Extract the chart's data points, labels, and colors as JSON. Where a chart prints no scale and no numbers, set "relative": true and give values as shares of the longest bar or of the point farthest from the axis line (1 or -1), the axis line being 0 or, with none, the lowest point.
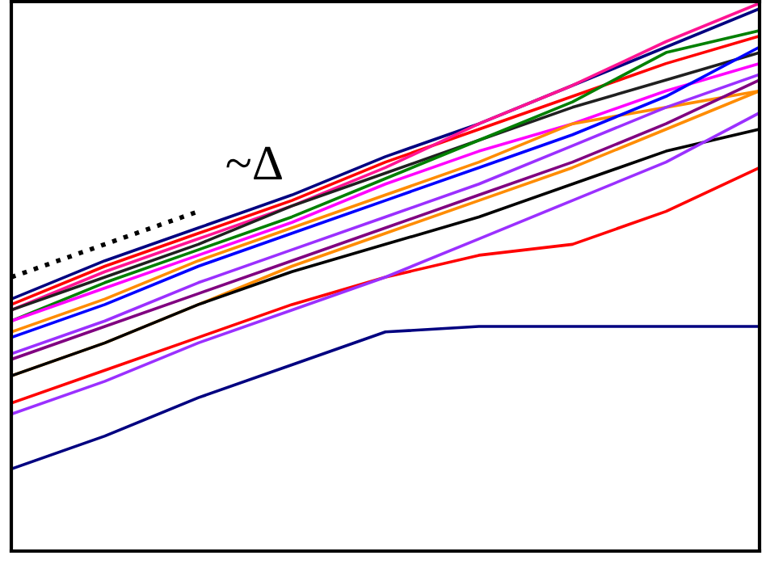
{
  "chart_data": {
    "type": "line",
    "relative": true,
    "grid": false,
    "legend": false,
    "marker": "none",
    "categories": [
      null,
      null,
      null,
      null,
      null,
      null,
      null,
      null,
      null
    ],
    "annotations": [
      "~Δ"
    ],
    "series": [
      {
        "color": "#000080",
        "values": [
          0.46,
          0.53,
          0.59,
          0.65,
          0.72,
          0.78,
          0.85,
          0.92,
          0.99
        ]
      },
      {
        "color": "#ff0000",
        "values": [
          0.45,
          0.52,
          0.58,
          0.64,
          0.71,
          0.77,
          0.83,
          0.89,
          0.94
        ]
      },
      {
        "color": "#ff1493",
        "values": [
          0.44,
          0.51,
          0.57,
          0.63,
          0.7,
          0.78,
          0.85,
          0.93,
          1.0
        ]
      },
      {
        "color": "#202020",
        "values": [
          0.44,
          0.5,
          0.56,
          0.63,
          0.69,
          0.75,
          0.81,
          0.86,
          0.91
        ]
      },
      {
        "color": "#008000",
        "values": [
          0.42,
          0.49,
          0.55,
          0.61,
          0.68,
          0.75,
          0.82,
          0.91,
          0.95
        ]
      },
      {
        "color": "#ff00ff",
        "values": [
          0.42,
          0.48,
          0.54,
          0.6,
          0.67,
          0.73,
          0.78,
          0.84,
          0.89
        ]
      },
      {
        "color": "#ff8c00",
        "values": [
          0.4,
          0.46,
          0.53,
          0.59,
          0.65,
          0.71,
          0.78,
          0.81,
          0.84
        ]
      },
      {
        "color": "#0000ff",
        "values": [
          0.39,
          0.45,
          0.52,
          0.58,
          0.64,
          0.7,
          0.76,
          0.83,
          0.92
        ]
      },
      {
        "color": "#9b30ff",
        "values": [
          0.36,
          0.42,
          0.49,
          0.55,
          0.61,
          0.67,
          0.74,
          0.81,
          0.87
        ]
      },
      {
        "color": "#800080",
        "values": [
          0.35,
          0.41,
          0.47,
          0.53,
          0.59,
          0.65,
          0.71,
          0.78,
          0.86
        ]
      },
      {
        "color": "#ff8c00",
        "values": [
          0.32,
          0.38,
          0.45,
          0.52,
          0.58,
          0.64,
          0.7,
          0.77,
          0.84
        ]
      },
      {
        "color": "#000000",
        "values": [
          0.32,
          0.38,
          0.45,
          0.51,
          0.56,
          0.61,
          0.67,
          0.73,
          0.77
        ]
      },
      {
        "color": "#ff0000",
        "values": [
          0.27,
          0.33,
          0.39,
          0.45,
          0.5,
          0.54,
          0.56,
          0.62,
          0.7
        ]
      },
      {
        "color": "#9b30ff",
        "values": [
          0.25,
          0.31,
          0.38,
          0.44,
          0.5,
          0.57,
          0.64,
          0.71,
          0.8
        ]
      },
      {
        "color": "#000080",
        "values": [
          0.15,
          0.21,
          0.28,
          0.34,
          0.4,
          0.41,
          0.41,
          0.41,
          0.41
        ]
      },
      {
        "color": "#000000",
        "line_style": "dotted",
        "values": [
          0.5,
          0.56,
          0.62,
          null,
          null,
          null,
          null,
          null,
          null
        ]
      }
    ]
  }
}
